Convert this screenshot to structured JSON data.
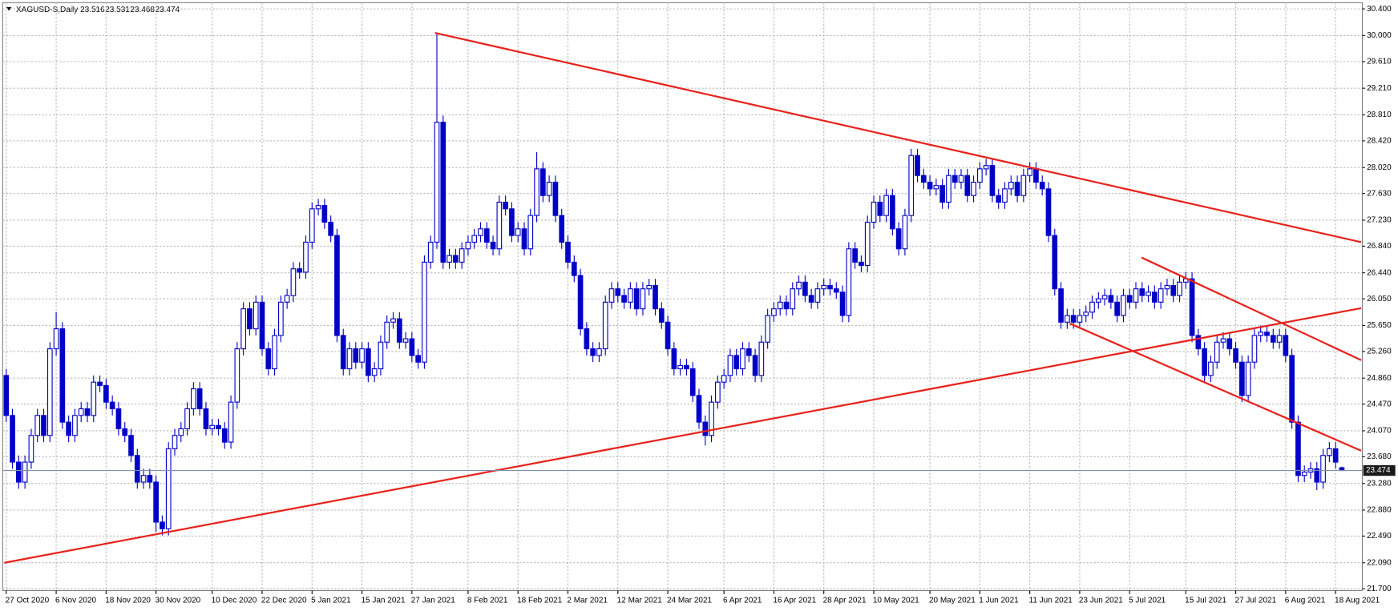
{
  "chart_data": {
    "type": "candlestick",
    "title": "XAGUSD-S,Daily",
    "color": "#0000c8",
    "grid": true,
    "ylim": [
      21.7,
      30.4
    ],
    "yticks": [
      {
        "value": 21.7,
        "label": "21.700"
      },
      {
        "value": 22.09,
        "label": "22.090"
      },
      {
        "value": 22.49,
        "label": "22.490"
      },
      {
        "value": 22.88,
        "label": "22.880"
      },
      {
        "value": 23.28,
        "label": "23.280"
      },
      {
        "value": 23.68,
        "label": "23.680"
      },
      {
        "value": 24.07,
        "label": "24.070"
      },
      {
        "value": 24.47,
        "label": "24.470"
      },
      {
        "value": 24.86,
        "label": "24.860"
      },
      {
        "value": 25.26,
        "label": "25.260"
      },
      {
        "value": 25.65,
        "label": "25.650"
      },
      {
        "value": 26.05,
        "label": "26.050"
      },
      {
        "value": 26.44,
        "label": "26.440"
      },
      {
        "value": 26.84,
        "label": "26.840"
      },
      {
        "value": 27.23,
        "label": "27.230"
      },
      {
        "value": 27.63,
        "label": "27.630"
      },
      {
        "value": 28.02,
        "label": "28.020"
      },
      {
        "value": 28.42,
        "label": "28.420"
      },
      {
        "value": 28.81,
        "label": "28.810"
      },
      {
        "value": 29.21,
        "label": "29.210"
      },
      {
        "value": 29.61,
        "label": "29.610"
      },
      {
        "value": 30,
        "label": "30.000"
      },
      {
        "value": 30.4,
        "label": "30.400"
      }
    ],
    "categories": [
      "27 Oct 2020",
      null,
      null,
      null,
      null,
      null,
      null,
      null,
      "6 Nov 2020",
      null,
      null,
      null,
      null,
      null,
      null,
      null,
      "18 Nov 2020",
      null,
      null,
      null,
      null,
      null,
      null,
      null,
      "30 Nov 2020",
      null,
      null,
      null,
      null,
      null,
      null,
      null,
      null,
      "10 Dec 2020",
      null,
      null,
      null,
      null,
      null,
      null,
      null,
      "22 Dec 2020",
      null,
      null,
      null,
      null,
      null,
      null,
      null,
      "5 Jan 2021",
      null,
      null,
      null,
      null,
      null,
      null,
      null,
      "15 Jan 2021",
      null,
      null,
      null,
      null,
      null,
      null,
      null,
      "27 Jan 2021",
      null,
      null,
      null,
      null,
      null,
      null,
      null,
      null,
      "8 Feb 2021",
      null,
      null,
      null,
      null,
      null,
      null,
      null,
      "18 Feb 2021",
      null,
      null,
      null,
      null,
      null,
      null,
      null,
      "2 Mar 2021",
      null,
      null,
      null,
      null,
      null,
      null,
      null,
      "12 Mar 2021",
      null,
      null,
      null,
      null,
      null,
      null,
      null,
      "24 Mar 2021",
      null,
      null,
      null,
      null,
      null,
      null,
      null,
      null,
      "6 Apr 2021",
      null,
      null,
      null,
      null,
      null,
      null,
      null,
      "16 Apr 2021",
      null,
      null,
      null,
      null,
      null,
      null,
      null,
      "28 Apr 2021",
      null,
      null,
      null,
      null,
      null,
      null,
      null,
      "10 May 2021",
      null,
      null,
      null,
      null,
      null,
      null,
      null,
      null,
      "20 May 2021",
      null,
      null,
      null,
      null,
      null,
      null,
      null,
      "1 Jun 2021",
      null,
      null,
      null,
      null,
      null,
      null,
      null,
      "11 Jun 2021",
      null,
      null,
      null,
      null,
      null,
      null,
      null,
      "23 Jun 2021",
      null,
      null,
      null,
      null,
      null,
      null,
      null,
      "5 Jul 2021",
      null,
      null,
      null,
      null,
      null,
      null,
      null,
      null,
      "15 Jul 2021",
      null,
      null,
      null,
      null,
      null,
      null,
      null,
      "27 Jul 2021",
      null,
      null,
      null,
      null,
      null,
      null,
      null,
      "6 Aug 2021",
      null,
      null,
      null,
      null,
      null,
      null,
      null,
      "18 Aug 2021",
      null
    ],
    "open": [
      24.9,
      24.3,
      23.6,
      23.3,
      23.6,
      24,
      24.3,
      24,
      25.3,
      25.6,
      24.2,
      24,
      24.3,
      24.4,
      24.3,
      24.8,
      24.75,
      24.5,
      24.4,
      24.1,
      24,
      23.7,
      23.3,
      23.4,
      23.3,
      22.7,
      22.6,
      23.8,
      24,
      24.1,
      24.4,
      24.7,
      24.4,
      24.1,
      24.15,
      24.1,
      23.9,
      24.5,
      25.3,
      25.9,
      25.6,
      26,
      25.3,
      25,
      25.5,
      26,
      26.1,
      26.5,
      26.45,
      26.9,
      27.4,
      27.45,
      27.2,
      27,
      25.5,
      25,
      25.3,
      25.1,
      25.3,
      24.9,
      25,
      25.4,
      25.7,
      25.75,
      25.4,
      25.45,
      25.2,
      25.1,
      26.6,
      26.9,
      28.7,
      26.6,
      26.7,
      26.6,
      26.8,
      26.9,
      27,
      27.1,
      26.9,
      26.8,
      27.5,
      27.4,
      27,
      27.1,
      26.8,
      27.3,
      28,
      27.6,
      27.8,
      27.3,
      26.9,
      26.6,
      26.4,
      25.6,
      25.3,
      25.2,
      25.3,
      26,
      26.2,
      26.1,
      26,
      26.2,
      25.9,
      26.2,
      26.25,
      25.9,
      25.7,
      25.3,
      25,
      25.05,
      25,
      24.6,
      24.2,
      24,
      24.5,
      24.8,
      24.9,
      25.2,
      25,
      25.3,
      25.2,
      24.9,
      25.4,
      25.8,
      25.9,
      26,
      25.9,
      26.2,
      26.3,
      26.1,
      26,
      26.2,
      26.25,
      26.2,
      26.15,
      25.8,
      26.8,
      26.6,
      26.55,
      27.2,
      27.5,
      27.3,
      27.6,
      27.1,
      26.8,
      27.3,
      28.2,
      27.9,
      27.8,
      27.7,
      27.75,
      27.5,
      27.9,
      27.8,
      27.9,
      27.6,
      27.8,
      28,
      28.05,
      27.6,
      27.5,
      27.7,
      27.8,
      27.6,
      27.9,
      28,
      27.8,
      27.7,
      27,
      26.2,
      25.7,
      25.8,
      25.7,
      25.8,
      25.85,
      26,
      26.05,
      26.1,
      26,
      25.8,
      26.1,
      26,
      26.2,
      26.1,
      26.15,
      26,
      26.2,
      26.25,
      26.1,
      26.3,
      26.35,
      25.5,
      25.3,
      24.9,
      25.1,
      25.4,
      25.45,
      25.3,
      25.1,
      24.6,
      25.1,
      25.5,
      25.55,
      25.5,
      25.4,
      25.5,
      25.2,
      24.2,
      23.4,
      23.45,
      23.5,
      23.3,
      23.7,
      23.8,
      23.516
    ],
    "high": [
      25,
      24.4,
      23.7,
      23.7,
      24.1,
      24.4,
      24.4,
      25.4,
      25.85,
      25.7,
      24.3,
      24.4,
      24.5,
      24.5,
      24.9,
      24.9,
      24.85,
      24.6,
      24.5,
      24.2,
      24.1,
      23.8,
      23.5,
      23.5,
      23.4,
      22.8,
      23.9,
      24.1,
      24.2,
      24.5,
      24.8,
      24.8,
      24.5,
      24.25,
      24.25,
      24.2,
      24.6,
      25.4,
      26,
      26,
      26.1,
      26.1,
      25.4,
      25.6,
      26.1,
      26.2,
      26.6,
      26.6,
      27,
      27.5,
      27.55,
      27.55,
      27.3,
      27.1,
      25.6,
      25.4,
      25.4,
      25.4,
      25.4,
      25.1,
      25.5,
      25.8,
      25.85,
      25.85,
      25.55,
      25.55,
      25.3,
      26.7,
      27,
      30.03,
      28.8,
      26.8,
      26.8,
      26.9,
      27,
      27.1,
      27.2,
      27.2,
      27,
      27.6,
      27.6,
      27.5,
      27.2,
      27.2,
      27.4,
      28.25,
      28.1,
      27.9,
      27.9,
      27.4,
      27,
      26.7,
      26.5,
      25.7,
      25.4,
      25.4,
      26.1,
      26.3,
      26.3,
      26.2,
      26.3,
      26.3,
      26.3,
      26.35,
      26.35,
      26,
      25.8,
      25.4,
      25.15,
      25.15,
      25.1,
      24.7,
      24.3,
      24.6,
      24.9,
      25,
      25.3,
      25.3,
      25.4,
      25.4,
      25.3,
      25.5,
      25.9,
      26,
      26.1,
      26.1,
      26.3,
      26.4,
      26.4,
      26.2,
      26.3,
      26.35,
      26.35,
      26.3,
      26.25,
      26.9,
      26.9,
      26.7,
      27.3,
      27.6,
      27.6,
      27.7,
      27.7,
      27.2,
      27.4,
      28.3,
      28.3,
      28,
      27.9,
      27.85,
      27.85,
      28,
      28,
      28,
      28,
      27.9,
      28.1,
      28.15,
      28.15,
      27.7,
      27.8,
      27.9,
      27.9,
      28,
      28.1,
      28.1,
      27.9,
      27.8,
      27.1,
      26.3,
      25.9,
      25.9,
      25.9,
      25.95,
      26.1,
      26.15,
      26.2,
      26.2,
      26.1,
      26.2,
      26.2,
      26.3,
      26.3,
      26.25,
      26.25,
      26.3,
      26.35,
      26.35,
      26.4,
      26.45,
      26.45,
      25.6,
      25.4,
      25.2,
      25.5,
      25.55,
      25.55,
      25.4,
      25.2,
      25.2,
      25.6,
      25.65,
      25.65,
      25.6,
      25.6,
      25.6,
      25.3,
      24.3,
      23.55,
      23.6,
      23.6,
      23.8,
      23.9,
      23.9,
      23.531
    ],
    "low": [
      24.2,
      23.5,
      23.2,
      23.2,
      23.5,
      23.9,
      23.9,
      23.9,
      25.2,
      24.1,
      23.9,
      23.9,
      24.2,
      24.2,
      24.2,
      24.65,
      24.4,
      24.3,
      24,
      23.9,
      23.6,
      23.2,
      23.2,
      23.2,
      22.55,
      22.5,
      22.5,
      23.7,
      23.9,
      24,
      24.3,
      24.3,
      24,
      24,
      24,
      23.8,
      23.8,
      24.4,
      25.2,
      25.5,
      25.5,
      25.2,
      24.9,
      24.9,
      25.4,
      25.9,
      26,
      26.35,
      26.35,
      26.8,
      27.3,
      27.1,
      26.9,
      25.4,
      24.9,
      24.9,
      25,
      25,
      24.8,
      24.8,
      24.9,
      25.3,
      25.6,
      25.3,
      25.3,
      25.1,
      25,
      25,
      26.5,
      26.8,
      26.5,
      26.5,
      26.5,
      26.5,
      26.7,
      26.8,
      26.9,
      26.8,
      26.7,
      26.7,
      27.3,
      26.9,
      26.9,
      26.7,
      26.7,
      27.2,
      27.5,
      27.5,
      27.2,
      26.8,
      26.5,
      26.3,
      25.5,
      25.2,
      25.1,
      25.1,
      25.2,
      25.9,
      26,
      25.9,
      25.9,
      25.8,
      25.8,
      26.1,
      25.8,
      25.6,
      25.2,
      24.9,
      24.9,
      24.9,
      24.5,
      24.1,
      23.85,
      23.9,
      24.4,
      24.7,
      24.8,
      24.9,
      24.9,
      25.1,
      24.8,
      24.8,
      25.3,
      25.7,
      25.8,
      25.8,
      25.8,
      26.1,
      26,
      25.9,
      25.9,
      26.1,
      26.1,
      26.05,
      25.7,
      25.7,
      26.5,
      26.45,
      26.45,
      27.1,
      27.2,
      27.2,
      27,
      26.7,
      26.7,
      27.2,
      27.8,
      27.7,
      27.6,
      27.6,
      27.4,
      27.4,
      27.7,
      27.7,
      27.5,
      27.5,
      27.7,
      27.9,
      27.5,
      27.4,
      27.4,
      27.6,
      27.5,
      27.5,
      27.8,
      27.7,
      27.6,
      26.9,
      26.1,
      25.6,
      25.6,
      25.6,
      25.6,
      25.7,
      25.75,
      25.9,
      25.95,
      25.9,
      25.7,
      25.7,
      25.9,
      25.9,
      26,
      26,
      25.9,
      25.9,
      26.1,
      26,
      26,
      26.2,
      25.4,
      25.2,
      24.8,
      24.8,
      25,
      25.3,
      25.2,
      25,
      24.5,
      24.5,
      25,
      25.4,
      25.4,
      25.3,
      25.3,
      25.1,
      24.1,
      23.3,
      23.3,
      23.35,
      23.18,
      23.2,
      23.6,
      23.5,
      23.468
    ],
    "close": [
      24.3,
      23.6,
      23.3,
      23.6,
      24,
      24.3,
      24,
      25.3,
      25.6,
      24.2,
      24,
      24.3,
      24.4,
      24.3,
      24.8,
      24.75,
      24.5,
      24.4,
      24.1,
      24,
      23.7,
      23.3,
      23.4,
      23.3,
      22.7,
      22.6,
      23.8,
      24,
      24.1,
      24.4,
      24.7,
      24.4,
      24.1,
      24.15,
      24.1,
      23.9,
      24.5,
      25.3,
      25.9,
      25.6,
      26,
      25.3,
      25,
      25.5,
      26,
      26.1,
      26.5,
      26.45,
      26.9,
      27.4,
      27.45,
      27.2,
      27,
      25.5,
      25,
      25.3,
      25.1,
      25.3,
      24.9,
      25,
      25.4,
      25.7,
      25.75,
      25.4,
      25.45,
      25.2,
      25.1,
      26.6,
      26.9,
      28.7,
      26.6,
      26.7,
      26.6,
      26.8,
      26.9,
      27,
      27.1,
      26.9,
      26.8,
      27.5,
      27.4,
      27,
      27.1,
      26.8,
      27.3,
      28,
      27.6,
      27.8,
      27.3,
      26.9,
      26.6,
      26.4,
      25.6,
      25.3,
      25.2,
      25.3,
      26,
      26.2,
      26.1,
      26,
      26.2,
      25.9,
      26.2,
      26.25,
      25.9,
      25.7,
      25.3,
      25,
      25.05,
      25,
      24.6,
      24.2,
      24,
      24.5,
      24.8,
      24.9,
      25.2,
      25,
      25.3,
      25.2,
      24.9,
      25.4,
      25.8,
      25.9,
      26,
      25.9,
      26.2,
      26.3,
      26.1,
      26,
      26.2,
      26.25,
      26.2,
      26.15,
      25.8,
      26.8,
      26.6,
      26.55,
      27.2,
      27.5,
      27.3,
      27.6,
      27.1,
      26.8,
      27.3,
      28.2,
      27.9,
      27.8,
      27.7,
      27.75,
      27.5,
      27.9,
      27.8,
      27.9,
      27.6,
      27.8,
      28,
      28.05,
      27.6,
      27.5,
      27.7,
      27.8,
      27.6,
      27.9,
      28,
      27.8,
      27.7,
      27,
      26.2,
      25.7,
      25.8,
      25.7,
      25.8,
      25.85,
      26,
      26.05,
      26.1,
      26,
      25.8,
      26.1,
      26,
      26.2,
      26.1,
      26.15,
      26,
      26.2,
      26.25,
      26.1,
      26.3,
      26.35,
      25.5,
      25.3,
      24.9,
      25.1,
      25.4,
      25.45,
      25.3,
      25.1,
      24.6,
      25.1,
      25.5,
      25.55,
      25.5,
      25.4,
      25.5,
      25.2,
      24.2,
      23.4,
      23.45,
      23.5,
      23.3,
      23.7,
      23.8,
      23.6,
      23.474
    ],
    "trendline_color": "#e8221c",
    "trendlines": [
      {
        "points": [
          [
            68.7,
            30.04
          ],
          [
            217.1,
            26.9
          ]
        ]
      },
      {
        "points": [
          [
            -0.3,
            22.09
          ],
          [
            217.1,
            25.91
          ]
        ]
      },
      {
        "points": [
          [
            181.9,
            26.67
          ],
          [
            217.1,
            25.13
          ]
        ]
      },
      {
        "points": [
          [
            170.4,
            25.68
          ],
          [
            217.1,
            23.77
          ]
        ]
      }
    ]
  }
}
